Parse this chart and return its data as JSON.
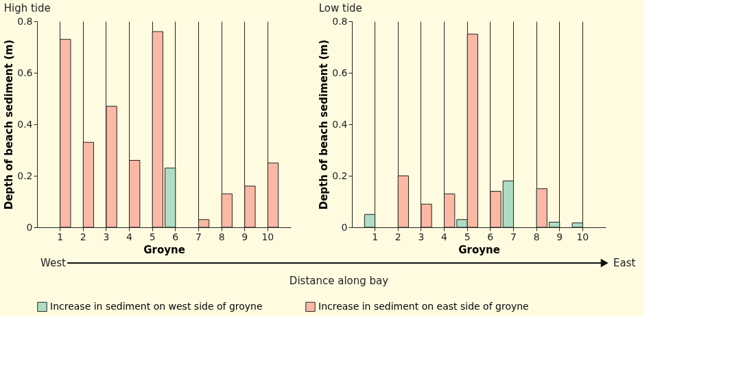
{
  "chart_data": [
    {
      "type": "bar",
      "title": "High tide",
      "xlabel": "Groyne",
      "ylabel": "Depth of beach sediment (m)",
      "categories": [
        "1",
        "2",
        "3",
        "4",
        "5",
        "6",
        "7",
        "8",
        "9",
        "10"
      ],
      "series": [
        {
          "name": "Increase in sediment on west side of groyne",
          "color": "#b0dcc4",
          "values": [
            null,
            null,
            null,
            null,
            null,
            0.23,
            null,
            null,
            null,
            null
          ]
        },
        {
          "name": "Increase in sediment on east side of groyne",
          "color": "#f9b9a5",
          "values": [
            0.73,
            0.33,
            0.47,
            0.26,
            0.76,
            null,
            0.03,
            0.13,
            0.16,
            0.25
          ]
        }
      ],
      "ylim": [
        0,
        0.8
      ],
      "yticks": [
        0,
        0.2,
        0.4,
        0.6,
        0.8
      ],
      "grid": "x",
      "legend": "bottom"
    },
    {
      "type": "bar",
      "title": "Low tide",
      "xlabel": "Groyne",
      "ylabel": "Depth of beach sediment (m)",
      "categories": [
        "1",
        "2",
        "3",
        "4",
        "5",
        "6",
        "7",
        "8",
        "9",
        "10"
      ],
      "series": [
        {
          "name": "Increase in sediment on west side of groyne",
          "color": "#b0dcc4",
          "values": [
            0.05,
            null,
            null,
            null,
            0.03,
            null,
            0.18,
            null,
            0.02,
            0.017
          ]
        },
        {
          "name": "Increase in sediment on east side of groyne",
          "color": "#f9b9a5",
          "values": [
            null,
            0.2,
            0.09,
            0.13,
            0.75,
            0.14,
            null,
            0.15,
            null,
            null
          ]
        }
      ],
      "ylim": [
        0,
        0.8
      ],
      "yticks": [
        0,
        0.2,
        0.4,
        0.6,
        0.8
      ],
      "grid": "x",
      "legend": "bottom",
      "annotations": [
        "West",
        "East",
        "Distance along bay"
      ]
    }
  ]
}
